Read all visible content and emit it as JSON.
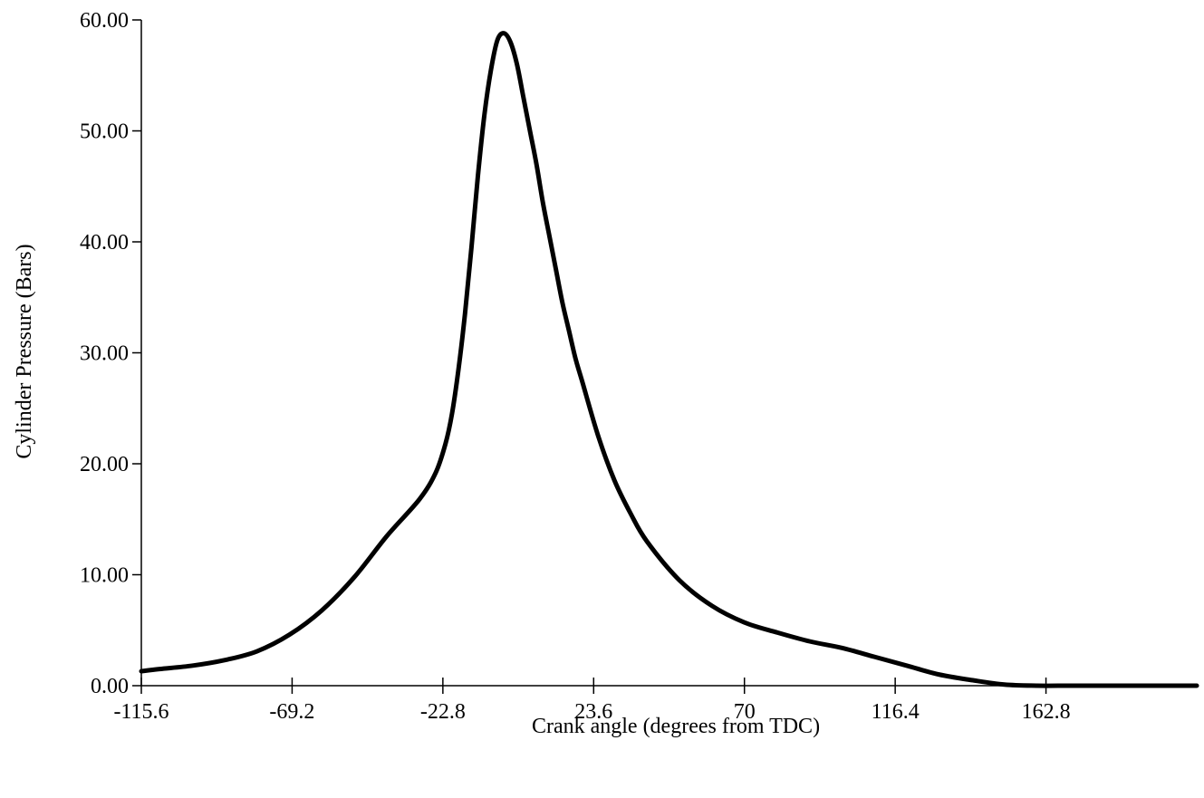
{
  "chart_data": {
    "type": "line",
    "title": "",
    "xlabel": "Crank angle (degrees from TDC)",
    "ylabel": "Cylinder Pressure (Bars)",
    "xlim": [
      -115.6,
      209.2
    ],
    "ylim": [
      0,
      60
    ],
    "x_ticks": [
      {
        "value": -115.6,
        "label": "-115.6"
      },
      {
        "value": -69.2,
        "label": "-69.2"
      },
      {
        "value": -22.8,
        "label": "-22.8"
      },
      {
        "value": 23.6,
        "label": "23.6"
      },
      {
        "value": 70,
        "label": "70"
      },
      {
        "value": 116.4,
        "label": "116.4"
      },
      {
        "value": 162.8,
        "label": "162.8"
      }
    ],
    "y_ticks": [
      {
        "value": 0,
        "label": "0.00"
      },
      {
        "value": 10,
        "label": "10.00"
      },
      {
        "value": 20,
        "label": "20.00"
      },
      {
        "value": 30,
        "label": "30.00"
      },
      {
        "value": 40,
        "label": "40.00"
      },
      {
        "value": 50,
        "label": "50.00"
      },
      {
        "value": 60,
        "label": "60.00"
      }
    ],
    "grid": false,
    "legend": "none",
    "colors": {
      "line": "#000000",
      "axis": "#000000",
      "background": "#ffffff"
    },
    "series": [
      {
        "name": "",
        "x": [
          -115.6,
          -110,
          -100,
          -90,
          -80,
          -70,
          -60,
          -50,
          -40,
          -30,
          -25,
          -22,
          -20,
          -18,
          -16,
          -14,
          -12,
          -10,
          -8,
          -6,
          -4,
          -2,
          0,
          2,
          4,
          6,
          8,
          10,
          12,
          14,
          16,
          18,
          20,
          25,
          30,
          35,
          40,
          50,
          60,
          70,
          80,
          90,
          100,
          110,
          120,
          130,
          140,
          150,
          160,
          170,
          180,
          190,
          200,
          209.2
        ],
        "values": [
          1.3,
          1.5,
          1.8,
          2.3,
          3.1,
          4.6,
          6.8,
          9.8,
          13.5,
          16.8,
          19.2,
          21.8,
          24.5,
          28.5,
          33.5,
          39.5,
          46,
          51.5,
          55.5,
          58.2,
          58.8,
          58,
          56,
          53,
          50,
          47,
          43.5,
          40.5,
          37.5,
          34.5,
          32,
          29.5,
          27.5,
          22.5,
          18.5,
          15.5,
          13,
          9.5,
          7.2,
          5.7,
          4.8,
          4.0,
          3.4,
          2.6,
          1.8,
          1.0,
          0.5,
          0.1,
          0.0,
          0.0,
          0.0,
          0.0,
          0.0,
          0.0
        ]
      }
    ]
  }
}
